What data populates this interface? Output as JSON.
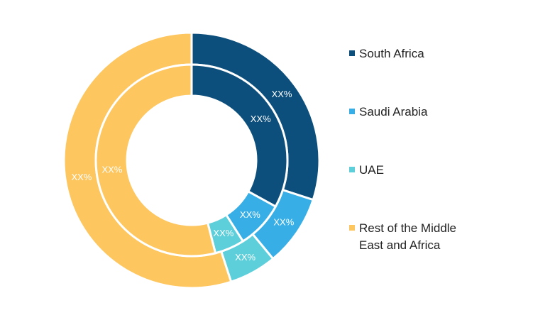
{
  "chart_data": {
    "type": "pie",
    "variant": "double-donut",
    "categories": [
      "South Africa",
      "Saudi Arabia",
      "UAE",
      "Rest of the Middle East and Africa"
    ],
    "colors": [
      "#0d4f7c",
      "#38aee6",
      "#5ccfda",
      "#fdc65f"
    ],
    "series": [
      {
        "ring": "outer",
        "values": [
          30,
          9,
          6,
          55
        ],
        "labels": [
          "XX%",
          "XX%",
          "XX%",
          "XX%"
        ]
      },
      {
        "ring": "inner",
        "values": [
          33,
          8,
          5,
          54
        ],
        "labels": [
          "XX%",
          "XX%",
          "XX%",
          "XX%"
        ]
      }
    ],
    "legend_position": "right"
  },
  "legend": {
    "items": [
      {
        "label": "South Africa",
        "color": "#0d4f7c"
      },
      {
        "label": "Saudi Arabia",
        "color": "#38aee6"
      },
      {
        "label": "UAE",
        "color": "#5ccfda"
      },
      {
        "label": "Rest of the Middle East and Africa",
        "color": "#fdc65f"
      }
    ]
  }
}
